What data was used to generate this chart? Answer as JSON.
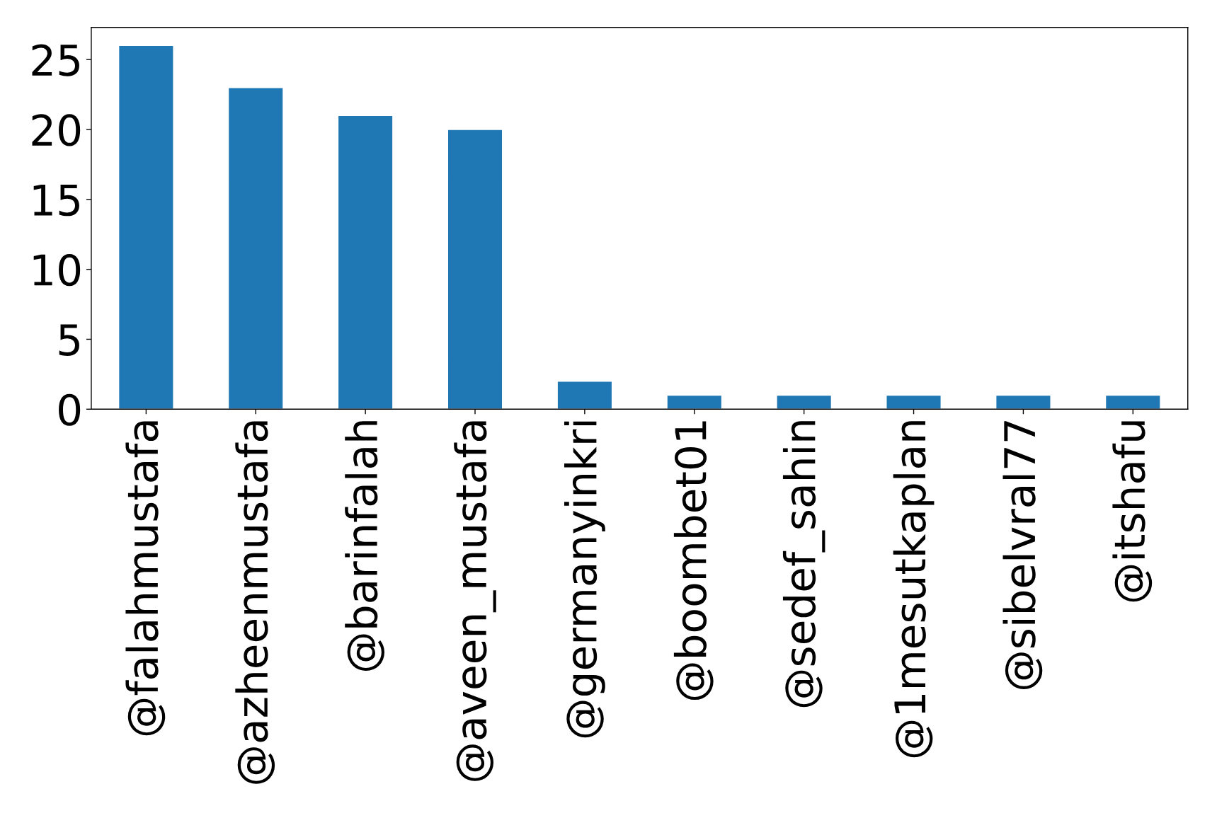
{
  "chart_data": {
    "type": "bar",
    "categories": [
      "@falahmustafa",
      "@azheenmustafa",
      "@barinfalah",
      "@aveen_mustafa",
      "@germanyinkri",
      "@boombet01",
      "@sedef_sahin",
      "@1mesutkaplan",
      "@sibelvral77",
      "@itshafu"
    ],
    "values": [
      26,
      23,
      21,
      20,
      2,
      1,
      1,
      1,
      1,
      1
    ],
    "color": "#1f77b4",
    "ylim": [
      0,
      27.3
    ],
    "yticks": [
      0,
      5,
      10,
      15,
      20,
      25
    ],
    "grid": false
  }
}
